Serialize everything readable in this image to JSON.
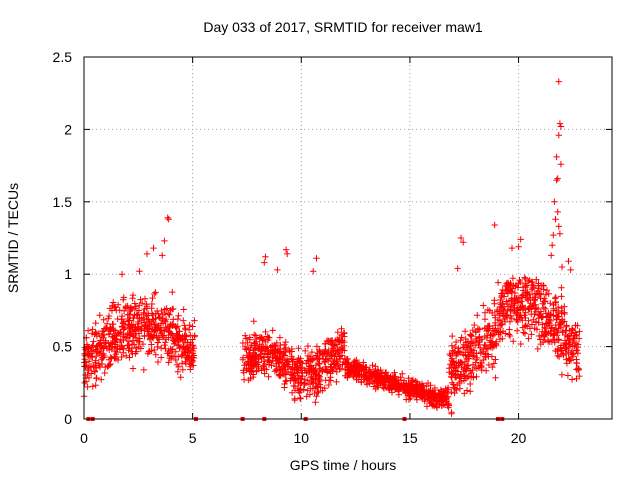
{
  "chart_data": {
    "type": "scatter",
    "title": "Day 033 of 2017, SRMTID for receiver maw1",
    "xlabel": "GPS time / hours",
    "ylabel": "SRMTID / TECUs",
    "xlim": [
      0,
      24.3
    ],
    "ylim": [
      0,
      2.5
    ],
    "xticks": [
      0,
      5,
      10,
      15,
      20
    ],
    "yticks": [
      0,
      0.5,
      1,
      1.5,
      2,
      2.5
    ],
    "ytick_labels": [
      "0",
      "0.5",
      "1",
      "1.5",
      "2",
      "2.5"
    ],
    "grid": true,
    "series": [
      {
        "name": "SRMTID",
        "marker": "+",
        "color": "#ff0000",
        "segments": [
          {
            "x_start": 0.0,
            "x_end": 5.1,
            "gen": "early"
          },
          {
            "x_start": 7.3,
            "x_end": 12.0,
            "gen": "mid"
          },
          {
            "x_start": 12.0,
            "x_end": 16.8,
            "gen": "quiet"
          },
          {
            "x_start": 16.8,
            "x_end": 22.8,
            "gen": "late"
          }
        ],
        "points": [
          [
            3.85,
            1.39
          ],
          [
            3.9,
            1.38
          ],
          [
            3.7,
            1.23
          ],
          [
            3.2,
            1.18
          ],
          [
            2.9,
            1.14
          ],
          [
            3.6,
            1.13
          ],
          [
            1.75,
            1.0
          ],
          [
            2.55,
            1.02
          ],
          [
            8.35,
            1.12
          ],
          [
            8.3,
            1.08
          ],
          [
            9.3,
            1.17
          ],
          [
            9.35,
            1.14
          ],
          [
            10.7,
            1.11
          ],
          [
            10.55,
            1.02
          ],
          [
            8.9,
            1.03
          ],
          [
            17.35,
            1.25
          ],
          [
            17.45,
            1.22
          ],
          [
            17.2,
            1.04
          ],
          [
            18.9,
            1.34
          ],
          [
            20.0,
            1.19
          ],
          [
            20.1,
            1.24
          ],
          [
            19.7,
            1.18
          ],
          [
            21.85,
            2.33
          ],
          [
            21.9,
            2.04
          ],
          [
            21.95,
            2.02
          ],
          [
            21.85,
            1.96
          ],
          [
            21.75,
            1.81
          ],
          [
            21.95,
            1.76
          ],
          [
            21.8,
            1.66
          ],
          [
            21.75,
            1.65
          ],
          [
            21.65,
            1.5
          ],
          [
            21.8,
            1.43
          ],
          [
            21.7,
            1.38
          ],
          [
            21.85,
            1.33
          ],
          [
            21.9,
            1.28
          ],
          [
            21.6,
            1.27
          ],
          [
            21.55,
            1.2
          ],
          [
            22.3,
            1.09
          ],
          [
            22.4,
            1.03
          ],
          [
            21.5,
            1.13
          ],
          [
            22.0,
            1.05
          ]
        ],
        "zero_markers_x": [
          0.2,
          0.4,
          5.15,
          7.3,
          8.3,
          10.2,
          14.75,
          19.05,
          19.25
        ]
      }
    ]
  }
}
